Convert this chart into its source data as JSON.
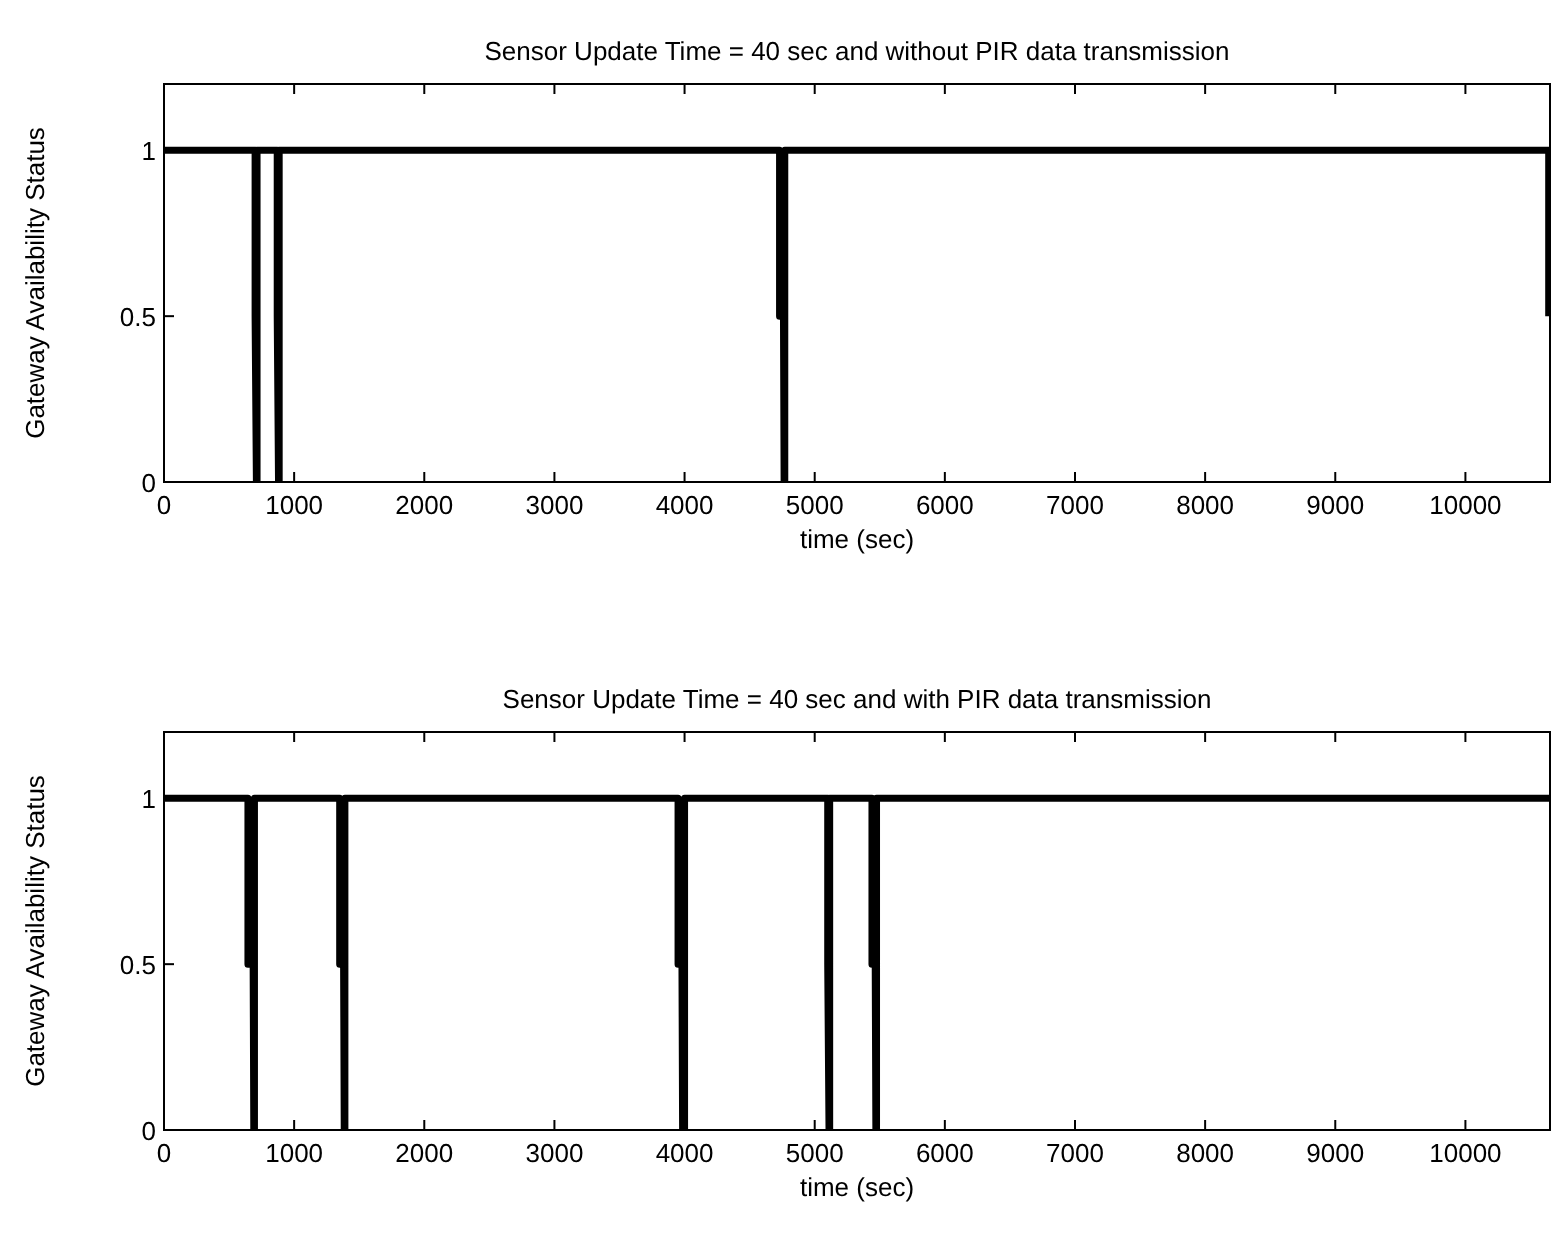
{
  "chart_data": [
    {
      "type": "line",
      "title": "Sensor Update Time = 40 sec and without PIR data transmission",
      "xlabel": "time (sec)",
      "ylabel": "Gateway Availability Status",
      "series": [
        {
          "color": "#000000",
          "x": [
            0,
            700,
            700,
            710,
            715,
            715,
            870,
            870,
            880,
            885,
            885,
            4730,
            4730,
            4760,
            4765,
            4770,
            4770,
            10640,
            10640
          ],
          "values": [
            1,
            1,
            0.5,
            0,
            0,
            1,
            1,
            0.5,
            0,
            0,
            1,
            1,
            0.5,
            0.5,
            0,
            0,
            1,
            1,
            0.5
          ]
        }
      ],
      "xlim": [
        0,
        10650
      ],
      "ylim": [
        0,
        1.2
      ],
      "xticks": [
        0,
        1000,
        2000,
        3000,
        4000,
        5000,
        6000,
        7000,
        8000,
        9000,
        10000
      ],
      "yticks": [
        0,
        0.5,
        1
      ],
      "grid": false,
      "marker": "none",
      "line_style": "solid"
    },
    {
      "type": "line",
      "title": "Sensor Update Time = 40 sec and with PIR data transmission",
      "xlabel": "time (sec)",
      "ylabel": "Gateway Availability Status",
      "series": [
        {
          "color": "#000000",
          "x": [
            0,
            645,
            645,
            685,
            690,
            695,
            695,
            1350,
            1350,
            1380,
            1385,
            1390,
            1390,
            3950,
            3950,
            3980,
            3985,
            4000,
            4000,
            5100,
            5100,
            5110,
            5115,
            5115,
            5440,
            5440,
            5465,
            5470,
            5475,
            5475,
            10650
          ],
          "values": [
            1,
            1,
            0.5,
            0.5,
            0,
            0,
            1,
            1,
            0.5,
            0.5,
            0,
            0,
            1,
            1,
            0.5,
            0.5,
            0,
            0,
            1,
            1,
            0.5,
            0,
            0,
            1,
            1,
            0.5,
            0.5,
            0,
            0,
            1,
            1
          ]
        }
      ],
      "xlim": [
        0,
        10650
      ],
      "ylim": [
        0,
        1.2
      ],
      "xticks": [
        0,
        1000,
        2000,
        3000,
        4000,
        5000,
        6000,
        7000,
        8000,
        9000,
        10000
      ],
      "yticks": [
        0,
        0.5,
        1
      ],
      "grid": false,
      "marker": "none",
      "line_style": "solid"
    }
  ]
}
